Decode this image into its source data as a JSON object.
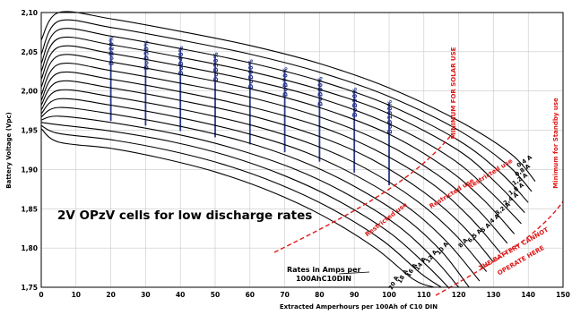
{
  "chart_data": {
    "type": "line",
    "title": "2V OPzV cells for low discharge rates",
    "xlabel": "Extracted Amperhours per 100Ah  of C10  DIN",
    "ylabel": "Battery Voltage (Vpc)",
    "xlim": [
      0,
      150
    ],
    "ylim": [
      1.75,
      2.1
    ],
    "x_ticks": [
      "0",
      "10",
      "20",
      "30",
      "40",
      "50",
      "60",
      "70",
      "80",
      "90",
      "100",
      "110",
      "120",
      "130",
      "140",
      "150"
    ],
    "y_ticks": [
      "1,75",
      "1,80",
      "1,85",
      "1,90",
      "1,95",
      "2,00",
      "2,05",
      "2,10"
    ],
    "series": [
      {
        "name": "0,4 A",
        "x": [
          0,
          5,
          20,
          40,
          60,
          80,
          100,
          120,
          135,
          142
        ],
        "y": [
          2.065,
          2.1,
          2.092,
          2.076,
          2.058,
          2.035,
          2.004,
          1.962,
          1.92,
          1.885
        ]
      },
      {
        "name": "0,8 A",
        "x": [
          0,
          5,
          20,
          40,
          60,
          80,
          100,
          120,
          134,
          141
        ],
        "y": [
          2.047,
          2.089,
          2.081,
          2.065,
          2.047,
          2.024,
          1.993,
          1.95,
          1.906,
          1.872
        ]
      },
      {
        "name": "1,2 A",
        "x": [
          0,
          5,
          20,
          40,
          60,
          80,
          100,
          120,
          132,
          140
        ],
        "y": [
          2.035,
          2.078,
          2.07,
          2.054,
          2.036,
          2.013,
          1.982,
          1.937,
          1.896,
          1.858
        ]
      },
      {
        "name": "1,8 A",
        "x": [
          0,
          5,
          20,
          40,
          60,
          80,
          100,
          120,
          131,
          139
        ],
        "y": [
          2.025,
          2.067,
          2.059,
          2.043,
          2.025,
          2.002,
          1.971,
          1.924,
          1.882,
          1.845
        ]
      },
      {
        "name": "2,4 A",
        "x": [
          0,
          5,
          20,
          40,
          60,
          80,
          100,
          118,
          129,
          138
        ],
        "y": [
          2.015,
          2.056,
          2.048,
          2.032,
          2.014,
          1.991,
          1.958,
          1.914,
          1.872,
          1.831
        ]
      },
      {
        "name": "3,2 A",
        "x": [
          0,
          5,
          20,
          40,
          60,
          80,
          100,
          116,
          127,
          136
        ],
        "y": [
          2.005,
          2.045,
          2.037,
          2.021,
          2.003,
          1.979,
          1.945,
          1.903,
          1.862,
          1.818
        ]
      },
      {
        "name": "4 A",
        "x": [
          0,
          5,
          20,
          40,
          60,
          80,
          98,
          114,
          125,
          134
        ],
        "y": [
          1.995,
          2.034,
          2.026,
          2.01,
          1.992,
          1.967,
          1.935,
          1.893,
          1.851,
          1.806
        ]
      },
      {
        "name": "5 A",
        "x": [
          0,
          5,
          20,
          40,
          60,
          80,
          96,
          112,
          123,
          132
        ],
        "y": [
          1.988,
          2.023,
          2.015,
          1.999,
          1.98,
          1.955,
          1.925,
          1.883,
          1.84,
          1.794
        ]
      },
      {
        "name": "6,5 A",
        "x": [
          0,
          5,
          20,
          40,
          60,
          80,
          95,
          110,
          121,
          130
        ],
        "y": [
          1.982,
          2.012,
          2.004,
          1.988,
          1.969,
          1.942,
          1.913,
          1.871,
          1.829,
          1.782
        ]
      },
      {
        "name": "8 A",
        "x": [
          0,
          5,
          20,
          40,
          60,
          78,
          93,
          108,
          119,
          128
        ],
        "y": [
          1.976,
          2.001,
          1.993,
          1.977,
          1.957,
          1.932,
          1.902,
          1.86,
          1.817,
          1.77
        ]
      },
      {
        "name": "10 A",
        "x": [
          0,
          5,
          20,
          40,
          60,
          76,
          91,
          106,
          117,
          126
        ],
        "y": [
          1.971,
          1.99,
          1.982,
          1.966,
          1.945,
          1.922,
          1.891,
          1.85,
          1.806,
          1.758
        ]
      },
      {
        "name": "12 A",
        "x": [
          0,
          5,
          20,
          40,
          58,
          74,
          89,
          104,
          115,
          123
        ],
        "y": [
          1.967,
          1.979,
          1.971,
          1.955,
          1.936,
          1.912,
          1.881,
          1.84,
          1.796,
          1.75
        ]
      },
      {
        "name": "14 A",
        "x": [
          0,
          5,
          20,
          40,
          56,
          72,
          87,
          102,
          113,
          120
        ],
        "y": [
          1.963,
          1.968,
          1.96,
          1.944,
          1.926,
          1.902,
          1.871,
          1.83,
          1.786,
          1.75
        ]
      },
      {
        "name": "16 A",
        "x": [
          0,
          5,
          20,
          38,
          54,
          70,
          85,
          100,
          111,
          117
        ],
        "y": [
          1.96,
          1.957,
          1.949,
          1.935,
          1.917,
          1.892,
          1.861,
          1.82,
          1.777,
          1.75
        ]
      },
      {
        "name": "18 A",
        "x": [
          0,
          5,
          20,
          36,
          52,
          68,
          83,
          98,
          109,
          115
        ],
        "y": [
          1.956,
          1.946,
          1.938,
          1.925,
          1.907,
          1.882,
          1.851,
          1.81,
          1.768,
          1.75
        ]
      },
      {
        "name": "20 A",
        "x": [
          0,
          5,
          20,
          34,
          50,
          66,
          81,
          96,
          107,
          113
        ],
        "y": [
          1.952,
          1.935,
          1.927,
          1.915,
          1.897,
          1.872,
          1.841,
          1.8,
          1.76,
          1.75
        ]
      }
    ],
    "rate_labels": [
      "0,4 A",
      "0,8 A",
      "1,2 A",
      "1,8 A",
      "2,4 A",
      "3,2 A",
      "4 A",
      "5 A",
      "6,5 A",
      "8 A",
      "10 A",
      "12 A",
      "14 A",
      "16 A",
      "18 A",
      "20 A"
    ],
    "dod_lines": [
      {
        "label": "DoD20%",
        "x": 20,
        "y_top": 2.067,
        "y_bottom": 1.962
      },
      {
        "label": "DoD30%",
        "x": 30,
        "y_top": 2.061,
        "y_bottom": 1.956
      },
      {
        "label": "DoD40%",
        "x": 40,
        "y_top": 2.054,
        "y_bottom": 1.949
      },
      {
        "label": "DoD50%",
        "x": 50,
        "y_top": 2.046,
        "y_bottom": 1.941
      },
      {
        "label": "DoD60%",
        "x": 60,
        "y_top": 2.037,
        "y_bottom": 1.932
      },
      {
        "label": "DoD70%",
        "x": 70,
        "y_top": 2.027,
        "y_bottom": 1.922
      },
      {
        "label": "DoD80%",
        "x": 80,
        "y_top": 2.015,
        "y_bottom": 1.91
      },
      {
        "label": "DoD90%",
        "x": 90,
        "y_top": 2.001,
        "y_bottom": 1.896
      },
      {
        "label": "DoD100%",
        "x": 100,
        "y_top": 1.985,
        "y_bottom": 1.88
      }
    ],
    "annotations": {
      "title": "2V OPzV cells for low discharge rates",
      "rates_box_line1": "Rates in Amps per",
      "rates_box_line2": "100AhC10DIN",
      "minimum_solar": "MINIMUM FOR SOLAR USE",
      "minimum_standby": "Minimum for Standby use",
      "restricted_1": "Restricted use",
      "restricted_2": "Restricted use",
      "restricted_3": "Restricted use",
      "cannot_operate_line1": "THE BATTERY CANNOT",
      "cannot_operate_line2": "OPERATE HERE"
    },
    "colors": {
      "curves": "#000000",
      "dod_lines": "#2b3a8c",
      "limit_lines": "#e01818",
      "grid": "#c8c8c8"
    },
    "grid": true
  }
}
